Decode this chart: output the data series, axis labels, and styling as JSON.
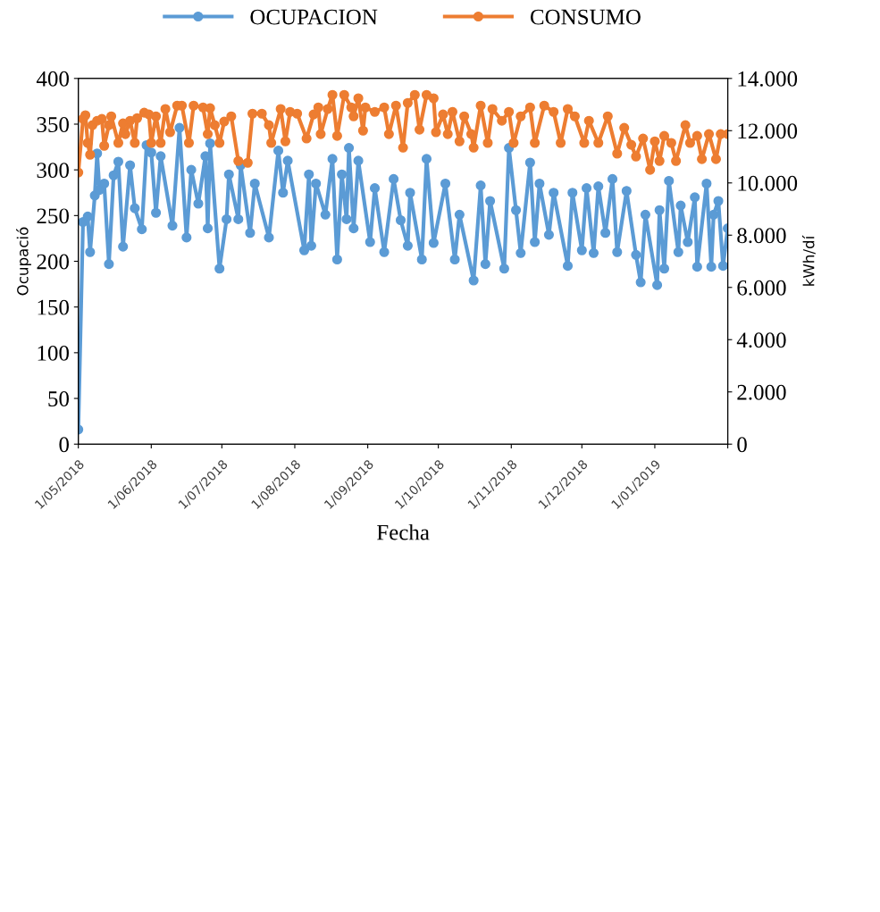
{
  "chart_data": {
    "type": "line",
    "xlabel": "Fecha",
    "ylabel": "Ocupació",
    "y2label": "kWh/dí",
    "xlim": [
      "2018-05-01",
      "2019-02-01"
    ],
    "xticks": [
      {
        "value": "2018-05-01",
        "label": "1/05/2018"
      },
      {
        "value": "2018-06-01",
        "label": "1/06/2018"
      },
      {
        "value": "2018-07-01",
        "label": "1/07/2018"
      },
      {
        "value": "2018-08-01",
        "label": "1/08/2018"
      },
      {
        "value": "2018-09-01",
        "label": "1/09/2018"
      },
      {
        "value": "2018-10-01",
        "label": "1/10/2018"
      },
      {
        "value": "2018-11-01",
        "label": "1/11/2018"
      },
      {
        "value": "2018-12-01",
        "label": "1/12/2018"
      },
      {
        "value": "2019-01-01",
        "label": "1/01/2019"
      },
      {
        "value": "2019-02-01",
        "label": null
      }
    ],
    "ylim": [
      0,
      400
    ],
    "yticks": [
      0,
      50,
      100,
      150,
      200,
      250,
      300,
      350,
      400
    ],
    "y2lim": [
      0,
      14000
    ],
    "y2ticks": [
      0,
      {
        "value": 2000,
        "label": "2.000"
      },
      {
        "value": 4000,
        "label": "4.000"
      },
      {
        "value": 6000,
        "label": "6.000"
      },
      {
        "value": 8000,
        "label": "8.000"
      },
      {
        "value": 10000,
        "label": "10.000"
      },
      {
        "value": 12000,
        "label": "12.000"
      },
      {
        "value": 14000,
        "label": "14.000"
      }
    ],
    "legend": "top",
    "grid": false,
    "marker": "circle",
    "line_style": "solid",
    "series": [
      {
        "name": "OCUPACION",
        "color": "#5b9bd5",
        "x": [
          "2018-05-01",
          "2018-05-03",
          "2018-05-05",
          "2018-05-06",
          "2018-05-08",
          "2018-05-09",
          "2018-05-10",
          "2018-05-12",
          "2018-05-14",
          "2018-05-16",
          "2018-05-18",
          "2018-05-20",
          "2018-05-23",
          "2018-05-25",
          "2018-05-28",
          "2018-05-30",
          "2018-06-01",
          "2018-06-03",
          "2018-06-05",
          "2018-06-10",
          "2018-06-13",
          "2018-06-16",
          "2018-06-18",
          "2018-06-21",
          "2018-06-24",
          "2018-06-25",
          "2018-06-26",
          "2018-06-30",
          "2018-07-03",
          "2018-07-04",
          "2018-07-08",
          "2018-07-09",
          "2018-07-13",
          "2018-07-15",
          "2018-07-21",
          "2018-07-25",
          "2018-07-27",
          "2018-07-29",
          "2018-08-05",
          "2018-08-07",
          "2018-08-08",
          "2018-08-10",
          "2018-08-14",
          "2018-08-17",
          "2018-08-19",
          "2018-08-21",
          "2018-08-23",
          "2018-08-24",
          "2018-08-26",
          "2018-08-28",
          "2018-09-02",
          "2018-09-04",
          "2018-09-08",
          "2018-09-12",
          "2018-09-15",
          "2018-09-18",
          "2018-09-19",
          "2018-09-24",
          "2018-09-26",
          "2018-09-29",
          "2018-10-04",
          "2018-10-08",
          "2018-10-10",
          "2018-10-16",
          "2018-10-19",
          "2018-10-21",
          "2018-10-23",
          "2018-10-29",
          "2018-10-31",
          "2018-11-03",
          "2018-11-05",
          "2018-11-09",
          "2018-11-11",
          "2018-11-13",
          "2018-11-17",
          "2018-11-19",
          "2018-11-25",
          "2018-11-27",
          "2018-12-01",
          "2018-12-03",
          "2018-12-06",
          "2018-12-08",
          "2018-12-11",
          "2018-12-14",
          "2018-12-16",
          "2018-12-20",
          "2018-12-24",
          "2018-12-26",
          "2018-12-28",
          "2019-01-02",
          "2019-01-03",
          "2019-01-05",
          "2019-01-07",
          "2019-01-11",
          "2019-01-12",
          "2019-01-15",
          "2019-01-18",
          "2019-01-19",
          "2019-01-23",
          "2019-01-25",
          "2019-01-26",
          "2019-01-28",
          "2019-01-30",
          "2019-02-01"
        ],
        "values": [
          16,
          243,
          249,
          210,
          272,
          318,
          278,
          285,
          197,
          294,
          309,
          216,
          305,
          258,
          235,
          327,
          319,
          253,
          315,
          239,
          346,
          226,
          300,
          263,
          315,
          236,
          329,
          192,
          246,
          295,
          246,
          305,
          231,
          285,
          226,
          321,
          275,
          310,
          212,
          295,
          217,
          285,
          251,
          312,
          202,
          295,
          246,
          324,
          236,
          310,
          221,
          280,
          210,
          290,
          245,
          217,
          275,
          202,
          312,
          220,
          285,
          202,
          251,
          179,
          283,
          197,
          266,
          192,
          324,
          256,
          209,
          308,
          221,
          285,
          229,
          275,
          195,
          275,
          212,
          280,
          209,
          282,
          231,
          290,
          210,
          277,
          207,
          177,
          251,
          174,
          256,
          192,
          288,
          210,
          261,
          221,
          270,
          194,
          285,
          194,
          251,
          266,
          195,
          236
        ]
      },
      {
        "name": "CONSUMO",
        "color": "#ed7d31",
        "axis": "y2",
        "x": [
          "2018-05-01",
          "2018-05-03",
          "2018-05-04",
          "2018-05-05",
          "2018-05-06",
          "2018-05-07",
          "2018-05-09",
          "2018-05-11",
          "2018-05-12",
          "2018-05-14",
          "2018-05-15",
          "2018-05-18",
          "2018-05-20",
          "2018-05-21",
          "2018-05-23",
          "2018-05-25",
          "2018-05-26",
          "2018-05-29",
          "2018-05-31",
          "2018-06-01",
          "2018-06-03",
          "2018-06-05",
          "2018-06-07",
          "2018-06-09",
          "2018-06-12",
          "2018-06-14",
          "2018-06-17",
          "2018-06-19",
          "2018-06-23",
          "2018-06-25",
          "2018-06-26",
          "2018-06-28",
          "2018-06-30",
          "2018-07-02",
          "2018-07-05",
          "2018-07-08",
          "2018-07-12",
          "2018-07-14",
          "2018-07-18",
          "2018-07-21",
          "2018-07-22",
          "2018-07-26",
          "2018-07-28",
          "2018-07-30",
          "2018-08-02",
          "2018-08-06",
          "2018-08-09",
          "2018-08-11",
          "2018-08-12",
          "2018-08-15",
          "2018-08-17",
          "2018-08-19",
          "2018-08-22",
          "2018-08-25",
          "2018-08-26",
          "2018-08-28",
          "2018-08-30",
          "2018-08-31",
          "2018-09-04",
          "2018-09-08",
          "2018-09-10",
          "2018-09-13",
          "2018-09-16",
          "2018-09-18",
          "2018-09-21",
          "2018-09-23",
          "2018-09-26",
          "2018-09-29",
          "2018-09-30",
          "2018-10-03",
          "2018-10-05",
          "2018-10-07",
          "2018-10-10",
          "2018-10-12",
          "2018-10-15",
          "2018-10-16",
          "2018-10-19",
          "2018-10-22",
          "2018-10-24",
          "2018-10-28",
          "2018-10-31",
          "2018-11-02",
          "2018-11-05",
          "2018-11-09",
          "2018-11-11",
          "2018-11-15",
          "2018-11-19",
          "2018-11-22",
          "2018-11-25",
          "2018-11-28",
          "2018-12-02",
          "2018-12-04",
          "2018-12-08",
          "2018-12-12",
          "2018-12-16",
          "2018-12-19",
          "2018-12-22",
          "2018-12-24",
          "2018-12-27",
          "2018-12-30",
          "2019-01-01",
          "2019-01-03",
          "2019-01-05",
          "2019-01-08",
          "2019-01-10",
          "2019-01-14",
          "2019-01-16",
          "2019-01-19",
          "2019-01-21",
          "2019-01-24",
          "2019-01-27",
          "2019-01-29",
          "2019-02-01"
        ],
        "values": [
          10400,
          12450,
          12590,
          11530,
          11080,
          12210,
          12380,
          12450,
          11420,
          12210,
          12550,
          11530,
          12280,
          11870,
          12380,
          11530,
          12480,
          12690,
          12620,
          11530,
          12550,
          11530,
          12830,
          11940,
          12960,
          12960,
          11530,
          12960,
          12890,
          11870,
          12860,
          12210,
          11530,
          12350,
          12550,
          10840,
          10770,
          12650,
          12650,
          12210,
          11530,
          12830,
          11590,
          12720,
          12650,
          11700,
          12620,
          12890,
          11870,
          12830,
          13370,
          11800,
          13370,
          12890,
          12550,
          13240,
          12000,
          12890,
          12720,
          12890,
          11870,
          12960,
          11350,
          13060,
          13370,
          12040,
          13370,
          13240,
          11940,
          12620,
          11870,
          12720,
          11590,
          12550,
          11870,
          11350,
          12960,
          11530,
          12830,
          12380,
          12720,
          11530,
          12550,
          12890,
          11530,
          12960,
          12720,
          11530,
          12830,
          12550,
          11530,
          12380,
          11530,
          12550,
          11120,
          12110,
          11460,
          11010,
          11700,
          10500,
          11590,
          10840,
          11800,
          11530,
          10840,
          12210,
          11530,
          11800,
          10910,
          11870,
          10910,
          11870,
          11870
        ]
      }
    ]
  }
}
